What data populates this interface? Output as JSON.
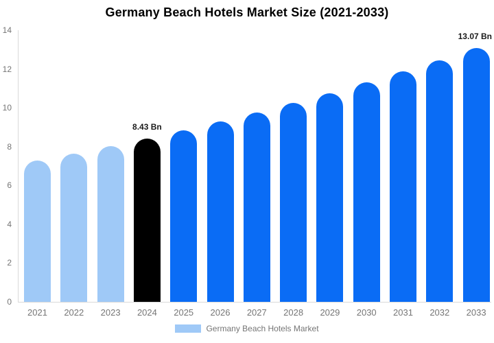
{
  "title": "Germany Beach Hotels Market Size (2021-2033)",
  "legend": {
    "label": "Germany Beach Hotels Market",
    "swatch_color": "#9fc9f7"
  },
  "colors": {
    "historical_bar": "#9fc9f7",
    "base_year_bar": "#000000",
    "forecast_bar": "#0a6cf5",
    "axis_line": "#d9d9d9",
    "tick_text": "#757575",
    "data_label_text": "#1a1a1a",
    "title_text": "#000000",
    "background": "#ffffff"
  },
  "chart_data": {
    "type": "bar",
    "title": "Germany Beach Hotels Market Size (2021-2033)",
    "xlabel": "",
    "ylabel": "",
    "categories": [
      "2021",
      "2022",
      "2023",
      "2024",
      "2025",
      "2026",
      "2027",
      "2028",
      "2029",
      "2030",
      "2031",
      "2032",
      "2033"
    ],
    "values": [
      7.28,
      7.65,
      8.03,
      8.43,
      8.85,
      9.3,
      9.76,
      10.25,
      10.76,
      11.3,
      11.87,
      12.46,
      13.07
    ],
    "bar_colors": [
      "#9fc9f7",
      "#9fc9f7",
      "#9fc9f7",
      "#000000",
      "#0a6cf5",
      "#0a6cf5",
      "#0a6cf5",
      "#0a6cf5",
      "#0a6cf5",
      "#0a6cf5",
      "#0a6cf5",
      "#0a6cf5",
      "#0a6cf5"
    ],
    "ylim": [
      0,
      14
    ],
    "yticks": [
      0,
      2,
      4,
      6,
      8,
      10,
      12,
      14
    ],
    "grid": false,
    "legend_position": "bottom",
    "legend_entries": [
      "Germany Beach Hotels Market"
    ],
    "data_labels": [
      {
        "category": "2024",
        "text": "8.43 Bn"
      },
      {
        "category": "2033",
        "text": "13.07 Bn"
      }
    ]
  }
}
